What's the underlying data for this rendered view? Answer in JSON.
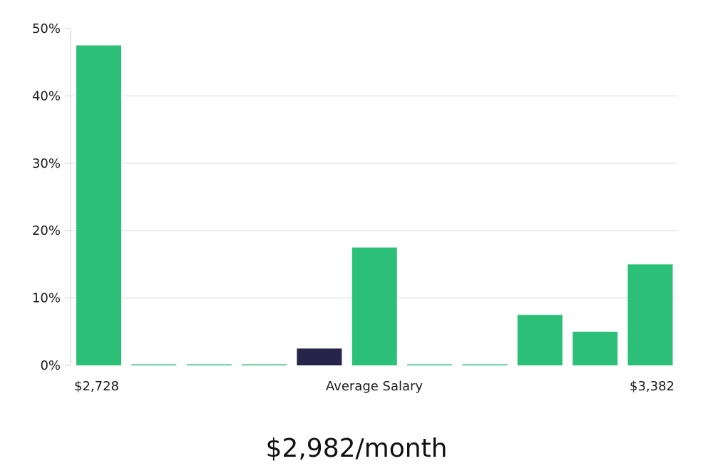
{
  "chart_data": {
    "type": "bar",
    "categories": [
      "",
      "",
      "",
      "",
      "",
      "",
      "",
      "",
      "",
      "",
      ""
    ],
    "values": [
      47.5,
      0,
      0,
      0,
      2.5,
      17.5,
      0,
      0,
      7.5,
      5.0,
      15.0
    ],
    "highlight_index": 4,
    "ylim": [
      0,
      50
    ],
    "yticks": [
      "0%",
      "10%",
      "20%",
      "30%",
      "40%",
      "50%"
    ],
    "ytick_values": [
      0,
      10,
      20,
      30,
      40,
      50
    ],
    "x_min_label": "$2,728",
    "x_center_label": "Average Salary",
    "x_max_label": "$3,382",
    "grid": true,
    "colors": {
      "bar": "#2bbf78",
      "highlight": "#26244a",
      "grid": "#d9d9d9",
      "axis": "#cccccc"
    }
  },
  "summary": "$2,982/month"
}
